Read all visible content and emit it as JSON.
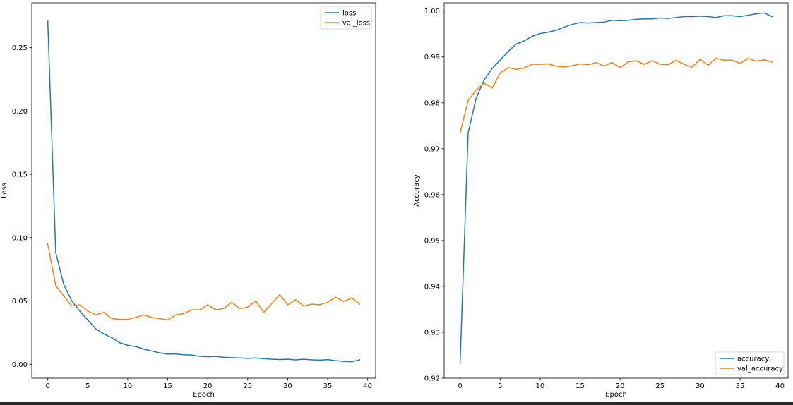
{
  "chart_data": [
    {
      "type": "line",
      "title": "",
      "xlabel": "Epoch",
      "ylabel": "Loss",
      "xlim": [
        -2,
        41
      ],
      "ylim": [
        -0.011,
        0.2855
      ],
      "xticks": [
        0,
        5,
        10,
        15,
        20,
        25,
        30,
        35,
        40
      ],
      "yticks": [
        0.0,
        0.05,
        0.1,
        0.15,
        0.2,
        0.25
      ],
      "ytick_decimals": 2,
      "grid": false,
      "legend_position": "upper right",
      "x": [
        0,
        1,
        2,
        3,
        4,
        5,
        6,
        7,
        8,
        9,
        10,
        11,
        12,
        13,
        14,
        15,
        16,
        17,
        18,
        19,
        20,
        21,
        22,
        23,
        24,
        25,
        26,
        27,
        28,
        29,
        30,
        31,
        32,
        33,
        34,
        35,
        36,
        37,
        38,
        39
      ],
      "series": [
        {
          "name": "loss",
          "color": "#1f77b4",
          "values": [
            0.271,
            0.088,
            0.063,
            0.05,
            0.042,
            0.035,
            0.028,
            0.024,
            0.021,
            0.017,
            0.015,
            0.014,
            0.012,
            0.0105,
            0.009,
            0.008,
            0.0082,
            0.0075,
            0.0073,
            0.0063,
            0.006,
            0.0062,
            0.0055,
            0.0052,
            0.005,
            0.0047,
            0.005,
            0.0045,
            0.004,
            0.0038,
            0.004,
            0.0035,
            0.004,
            0.0035,
            0.0033,
            0.0037,
            0.0028,
            0.0023,
            0.002,
            0.0035
          ]
        },
        {
          "name": "val_loss",
          "color": "#ff7f0e",
          "values": [
            0.095,
            0.062,
            0.054,
            0.046,
            0.047,
            0.042,
            0.039,
            0.041,
            0.036,
            0.0355,
            0.0355,
            0.037,
            0.039,
            0.037,
            0.036,
            0.035,
            0.039,
            0.04,
            0.043,
            0.043,
            0.047,
            0.043,
            0.044,
            0.049,
            0.044,
            0.045,
            0.05,
            0.041,
            0.048,
            0.055,
            0.047,
            0.051,
            0.046,
            0.0475,
            0.047,
            0.049,
            0.053,
            0.0495,
            0.0525,
            0.0475
          ]
        }
      ]
    },
    {
      "type": "line",
      "title": "",
      "xlabel": "Epoch",
      "ylabel": "Accuracy",
      "xlim": [
        -2,
        41
      ],
      "ylim": [
        0.92,
        1.0018
      ],
      "xticks": [
        0,
        5,
        10,
        15,
        20,
        25,
        30,
        35,
        40
      ],
      "yticks": [
        0.92,
        0.93,
        0.94,
        0.95,
        0.96,
        0.97,
        0.98,
        0.99,
        1.0
      ],
      "ytick_decimals": 2,
      "grid": false,
      "legend_position": "lower right",
      "x": [
        0,
        1,
        2,
        3,
        4,
        5,
        6,
        7,
        8,
        9,
        10,
        11,
        12,
        13,
        14,
        15,
        16,
        17,
        18,
        19,
        20,
        21,
        22,
        23,
        24,
        25,
        26,
        27,
        28,
        29,
        30,
        31,
        32,
        33,
        34,
        35,
        36,
        37,
        38,
        39
      ],
      "series": [
        {
          "name": "accuracy",
          "color": "#1f77b4",
          "values": [
            0.9235,
            0.9735,
            0.981,
            0.985,
            0.9875,
            0.9893,
            0.9912,
            0.9928,
            0.9935,
            0.9945,
            0.9951,
            0.9954,
            0.9958,
            0.9965,
            0.9971,
            0.9975,
            0.9974,
            0.9975,
            0.9976,
            0.998,
            0.9979,
            0.998,
            0.9982,
            0.9983,
            0.9983,
            0.9985,
            0.9984,
            0.9986,
            0.9988,
            0.9988,
            0.9989,
            0.9988,
            0.9986,
            0.999,
            0.999,
            0.9988,
            0.9991,
            0.9994,
            0.9996,
            0.9988
          ]
        },
        {
          "name": "val_accuracy",
          "color": "#ff7f0e",
          "values": [
            0.9735,
            0.9805,
            0.9828,
            0.9843,
            0.9832,
            0.9865,
            0.9877,
            0.9873,
            0.9876,
            0.9884,
            0.9884,
            0.9885,
            0.988,
            0.9878,
            0.9881,
            0.9885,
            0.9883,
            0.9888,
            0.988,
            0.9888,
            0.9877,
            0.9889,
            0.9892,
            0.9884,
            0.9892,
            0.9884,
            0.9883,
            0.9893,
            0.9884,
            0.9878,
            0.9895,
            0.9882,
            0.9897,
            0.9893,
            0.9893,
            0.9886,
            0.9897,
            0.9891,
            0.9894,
            0.9889
          ]
        }
      ]
    }
  ]
}
